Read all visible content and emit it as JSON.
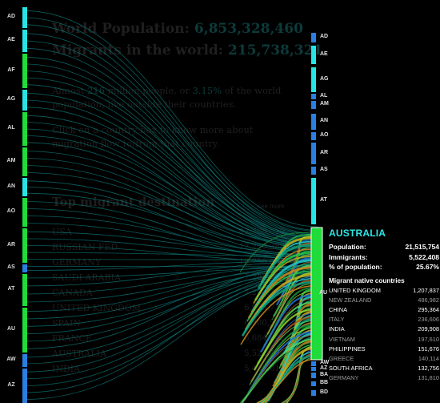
{
  "header": {
    "world_population_label": "World Population:",
    "world_population_value": "6,853,328,460",
    "migrants_label": "Migrants in the world:",
    "migrants_value": "215,738,321"
  },
  "intro": {
    "p1_prefix": "Almost",
    "p1_num1": "216",
    "p1_mid": "million people, or",
    "p1_num2": "3.15%",
    "p1_suffix": "of the world population, live outside their countries.",
    "p2": "Click on a country box to know more about migration flow to/from that country."
  },
  "destinations": {
    "title": "Top migrant destination",
    "see_more": "see more",
    "items": [
      {
        "name": "USA",
        "value": "42,788,029"
      },
      {
        "name": "RUSSIAN FED.",
        "value": "12,270,388"
      },
      {
        "name": "GERMANY",
        "value": "10,758,061"
      },
      {
        "name": "SAUDI ARABIA",
        "value": "7,288,900"
      },
      {
        "name": "CANADA",
        "value": "7,202,340"
      },
      {
        "name": "UNITED KINGDOM",
        "value": "6,955,738"
      },
      {
        "name": "SPAIN",
        "value": "6,900,547"
      },
      {
        "name": "FRANCE",
        "value": "6,684,842"
      },
      {
        "name": "AUSTRALIA",
        "value": "5,522,408"
      },
      {
        "name": "INDIA",
        "value": "5,436,012"
      }
    ]
  },
  "left_countries": [
    "AD",
    "AE",
    "AF",
    "AG",
    "AL",
    "AM",
    "AN",
    "AO",
    "AR",
    "AS",
    "AT",
    "AU",
    "AW",
    "AZ"
  ],
  "right_countries_top": [
    "AD",
    "AE",
    "AG",
    "AL",
    "AM",
    "AN",
    "AO",
    "AR",
    "AS",
    "AT"
  ],
  "right_countries_bottom": [
    "AW",
    "AZ",
    "BA",
    "BB",
    "BD"
  ],
  "selected_country_code": "AU",
  "panel": {
    "country": "AUSTRALIA",
    "population_label": "Population:",
    "population_value": "21,515,754",
    "immigrants_label": "Immigrants:",
    "immigrants_value": "5,522,408",
    "pct_label": "% of population:",
    "pct_value": "25.67%",
    "origins_title": "Migrant native countries",
    "origins": [
      {
        "name": "UNITED KINGDOM",
        "value": "1,207,837",
        "tone": "bright"
      },
      {
        "name": "NEW ZEALAND",
        "value": "486,982",
        "tone": "dim"
      },
      {
        "name": "CHINA",
        "value": "295,364",
        "tone": "bright"
      },
      {
        "name": "ITALY",
        "value": "236,606",
        "tone": "dim"
      },
      {
        "name": "INDIA",
        "value": "209,908",
        "tone": "bright"
      },
      {
        "name": "VIETNAM",
        "value": "197,610",
        "tone": "dim"
      },
      {
        "name": "PHILIPPINES",
        "value": "151,676",
        "tone": "bright"
      },
      {
        "name": "GREECE",
        "value": "140,114",
        "tone": "dim"
      },
      {
        "name": "SOUTH AFRICA",
        "value": "132,756",
        "tone": "bright"
      },
      {
        "name": "GERMANY",
        "value": "131,810",
        "tone": "dim"
      }
    ]
  },
  "colors": {
    "background": "#000000",
    "box_cyan": "#27e4e4",
    "box_green": "#1fdc3a",
    "box_blue": "#2a7fe0",
    "flow_teal": "#0e7e7c",
    "panel_title": "#2fe6e6"
  }
}
